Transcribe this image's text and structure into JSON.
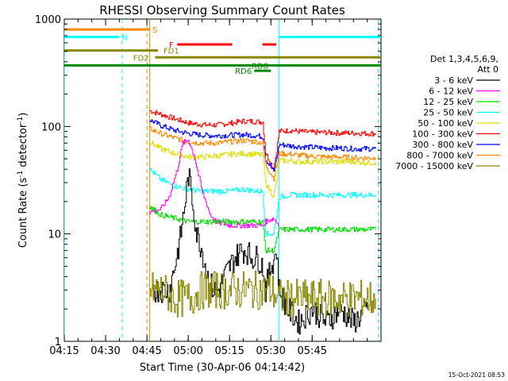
{
  "chart_data": {
    "type": "line",
    "title": "RHESSI Observing Summary Count Rates",
    "ylabel_main": "Count Rate (s",
    "ylabel_sup": "-1",
    "ylabel_tail": " detector",
    "ylabel_sup2": "-1",
    "ylabel_close": ")",
    "xlabel": "Start Time (30-Apr-06 04:14:42)",
    "footer": "15-Oct-2021 08:53",
    "y_scale": "log",
    "ylim": [
      1,
      1000
    ],
    "xlim_minutes": [
      255,
      370
    ],
    "x_ticks": [
      {
        "minute": 255,
        "label": "04:15"
      },
      {
        "minute": 270,
        "label": "04:30"
      },
      {
        "minute": 285,
        "label": "04:45"
      },
      {
        "minute": 300,
        "label": "05:00"
      },
      {
        "minute": 315,
        "label": "05:15"
      },
      {
        "minute": 330,
        "label": "05:30"
      },
      {
        "minute": 345,
        "label": "05:45"
      }
    ],
    "y_ticks": [
      {
        "value": 1,
        "label": "1"
      },
      {
        "value": 10,
        "label": "10"
      },
      {
        "value": 100,
        "label": "100"
      },
      {
        "value": 1000,
        "label": "1000"
      }
    ],
    "legend": {
      "header1": "Det 1,3,4,5,6,9,",
      "header2": "Att 0",
      "entries": [
        {
          "label": "3 - 6 keV",
          "color": "#000000"
        },
        {
          "label": "6 - 12 keV",
          "color": "#ff00ff"
        },
        {
          "label": "12 - 25 keV",
          "color": "#00dd00"
        },
        {
          "label": "25 - 50 keV",
          "color": "#00ffff"
        },
        {
          "label": "50 - 100 keV",
          "color": "#dddd00"
        },
        {
          "label": "100 - 300 keV",
          "color": "#ff0000"
        },
        {
          "label": "300 - 800 keV",
          "color": "#0000ff"
        },
        {
          "label": "800 - 7000 keV",
          "color": "#ff8800"
        },
        {
          "label": "7000 - 15000 keV",
          "color": "#888800"
        }
      ]
    },
    "flags": [
      {
        "label": "S",
        "color": "#ff8800",
        "y": 800,
        "x_start": 255,
        "x_end": 286,
        "label_x": 287
      },
      {
        "label": "N",
        "color": "#00ffff",
        "y": 680,
        "x_start": 255,
        "x_end": 275,
        "x_start2": 333,
        "x_end2": 370,
        "label_x": 276
      },
      {
        "label": "F",
        "color": "#ff0000",
        "y": 580,
        "x_start": 296,
        "x_end": 316,
        "x_start2": 327,
        "x_end2": 332,
        "label_x": 293
      },
      {
        "label": "FD1",
        "color": "#888800",
        "y": 510,
        "x_start": 255,
        "x_end": 289,
        "label_x": 291
      },
      {
        "label": "FD2",
        "color": "#888800",
        "y": 440,
        "x_start": 288,
        "x_end": 370,
        "label_x": 280
      },
      {
        "label": "RD6",
        "color": "#008800",
        "y": 330,
        "x_start": 324,
        "x_end": 330,
        "label_x": 317
      },
      {
        "label": "RD8",
        "color": "#008800",
        "y": 370,
        "x_start": 255,
        "x_end": 370,
        "label_x": 323
      }
    ],
    "vlines": [
      {
        "minute": 255,
        "color": "#00ffff",
        "style": "solid"
      },
      {
        "minute": 276,
        "color": "#00ffff",
        "style": "dash"
      },
      {
        "minute": 285,
        "color": "#ff8800",
        "style": "dash"
      },
      {
        "minute": 286,
        "color": "#ff8800",
        "style": "solid"
      },
      {
        "minute": 333,
        "color": "#00ffff",
        "style": "solid"
      },
      {
        "minute": 369,
        "color": "#00ffff",
        "style": "dash"
      }
    ],
    "data_start_minute": 286,
    "data_end_minute": 368,
    "series": [
      {
        "name": "100 - 300 keV",
        "color": "#ff0000",
        "x": [
          286,
          290,
          295,
          300,
          305,
          310,
          315,
          320,
          325,
          327,
          328,
          331,
          333,
          337,
          340,
          345,
          350,
          355,
          360,
          365,
          368
        ],
        "y": [
          140,
          130,
          118,
          108,
          104,
          103,
          107,
          112,
          111,
          110,
          58,
          40,
          90,
          92,
          90,
          88,
          88,
          87,
          87,
          86,
          86
        ]
      },
      {
        "name": "300 - 800 keV",
        "color": "#0000ff",
        "x": [
          286,
          290,
          295,
          300,
          305,
          310,
          315,
          320,
          325,
          327,
          328,
          331,
          333,
          337,
          340,
          345,
          350,
          355,
          360,
          365,
          368
        ],
        "y": [
          115,
          102,
          92,
          86,
          83,
          82,
          83,
          84,
          82,
          80,
          50,
          38,
          68,
          66,
          65,
          64,
          63,
          63,
          62,
          62,
          62
        ]
      },
      {
        "name": "800 - 7000 keV",
        "color": "#ff8800",
        "x": [
          286,
          290,
          295,
          300,
          305,
          310,
          315,
          320,
          325,
          327,
          328,
          331,
          333,
          337,
          340,
          345,
          350,
          355,
          360,
          365,
          368
        ],
        "y": [
          95,
          86,
          78,
          72,
          70,
          70,
          72,
          74,
          72,
          70,
          44,
          33,
          56,
          55,
          54,
          53,
          52,
          52,
          51,
          51,
          51
        ]
      },
      {
        "name": "50 - 100 keV",
        "color": "#dddd00",
        "x": [
          286,
          290,
          295,
          300,
          305,
          310,
          315,
          320,
          325,
          327,
          328,
          331,
          333,
          337,
          340,
          345,
          350,
          355,
          360,
          365,
          368
        ],
        "y": [
          72,
          62,
          56,
          52,
          52,
          53,
          55,
          56,
          55,
          54,
          30,
          22,
          48,
          48,
          47,
          47,
          47,
          47,
          47,
          46,
          46
        ]
      },
      {
        "name": "25 - 50 keV",
        "color": "#00ffff",
        "x": [
          286,
          290,
          295,
          300,
          305,
          310,
          315,
          320,
          325,
          327,
          328,
          331,
          333,
          337,
          340,
          345,
          350,
          355,
          360,
          365,
          368
        ],
        "y": [
          40,
          32,
          28,
          26,
          25,
          25,
          25,
          26,
          25,
          25,
          10,
          10,
          22,
          23,
          23,
          23,
          23,
          23,
          23,
          23,
          23
        ]
      },
      {
        "name": "6 - 12 keV",
        "color": "#ff00ff",
        "x": [
          286,
          290,
          293,
          296,
          298,
          300,
          302,
          305,
          308,
          310,
          315,
          320,
          325,
          327,
          328,
          331,
          333
        ],
        "y": [
          16,
          17,
          22,
          40,
          70,
          75,
          55,
          25,
          15,
          13,
          12,
          12,
          12,
          12,
          13,
          14,
          12
        ]
      },
      {
        "name": "12 - 25 keV",
        "color": "#00dd00",
        "x": [
          286,
          290,
          295,
          300,
          305,
          310,
          315,
          320,
          325,
          327,
          328,
          331,
          333,
          337,
          340,
          345,
          350,
          355,
          360,
          365,
          368
        ],
        "y": [
          18,
          15,
          14,
          13,
          13,
          13,
          13,
          13,
          13,
          13,
          7,
          7,
          11,
          11,
          11,
          11,
          11,
          11,
          11,
          11,
          11
        ]
      },
      {
        "name": "3 - 6 keV",
        "color": "#000000",
        "x": [
          287,
          289,
          291,
          293,
          295,
          297,
          299,
          300,
          301,
          303,
          305,
          307,
          309,
          311,
          313,
          315,
          317,
          319,
          321,
          323,
          325,
          327,
          328,
          330,
          332,
          333,
          336,
          340,
          345,
          350,
          355,
          360,
          365
        ],
        "y": [
          3,
          3,
          3,
          3,
          5,
          9,
          22,
          35,
          25,
          10,
          7,
          4,
          3,
          3,
          4,
          5,
          6,
          7,
          7,
          6,
          6,
          5,
          3,
          5,
          7,
          3,
          2,
          1.5,
          2,
          1.5,
          2,
          1.5,
          2
        ]
      },
      {
        "name": "7000 - 15000 keV",
        "color": "#888800",
        "x": [
          286,
          290,
          295,
          300,
          305,
          310,
          315,
          320,
          325,
          330,
          333,
          337,
          340,
          345,
          350,
          355,
          360,
          365,
          368
        ],
        "y": [
          3,
          3,
          2.5,
          2.5,
          3,
          3,
          3,
          3,
          3,
          3,
          2.5,
          2.5,
          2.5,
          2.5,
          2.5,
          2.5,
          2.5,
          2.5,
          2.5
        ]
      }
    ]
  }
}
